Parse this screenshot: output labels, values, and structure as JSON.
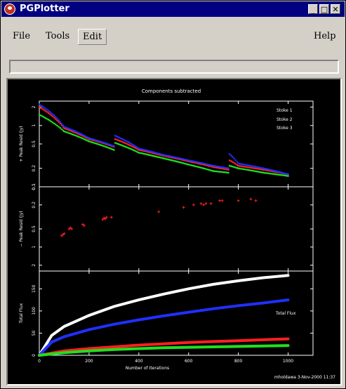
{
  "window": {
    "title": "PGPlotter",
    "controls": {
      "minimize": "_",
      "maximize": "□",
      "close": "✕"
    }
  },
  "menu": {
    "file": "File",
    "tools": "Tools",
    "edit": "Edit",
    "help": "Help"
  },
  "plot": {
    "title": "Components subtracted",
    "footer": "mholdawa   3-Nov-2000 11:37",
    "xlabel": "Number of Iterations",
    "xticks": [
      "0",
      "200",
      "400",
      "600",
      "800",
      "1000"
    ],
    "panels": [
      {
        "ylabel": "+ Peak Resid (Jy)",
        "yticks": [
          "2",
          "1",
          "0.5",
          "0.2",
          "0.1"
        ]
      },
      {
        "ylabel": "− Peak Resid (Jy)",
        "yticks": [
          "0.1",
          "0.2",
          "0.5",
          "1",
          "2"
        ]
      },
      {
        "ylabel": "Total Flux",
        "yticks": [
          "0",
          "50",
          "100",
          "150"
        ],
        "annotation": "Total Flux"
      }
    ]
  },
  "chart_data": {
    "type": "scatter",
    "xlim": [
      0,
      1100
    ],
    "legend": [
      "Stoke 1",
      "Stoke 2",
      "Stoke 3"
    ],
    "legend_position": "top-right",
    "colors": {
      "stoke1": "#ff2020",
      "stoke2": "#20e020",
      "stoke3": "#2030ff",
      "total": "#ffffff"
    },
    "pos_resid": {
      "ylim": [
        0.1,
        2.5
      ],
      "series": [
        {
          "name": "Stoke 1",
          "x": [
            0,
            100,
            200,
            300,
            305,
            400,
            500,
            600,
            700,
            760,
            765,
            800,
            900,
            1000
          ],
          "y": [
            2.0,
            0.9,
            0.6,
            0.45,
            0.6,
            0.4,
            0.32,
            0.26,
            0.21,
            0.19,
            0.27,
            0.22,
            0.19,
            0.16
          ]
        },
        {
          "name": "Stoke 2",
          "x": [
            0,
            100,
            200,
            300,
            305,
            400,
            500,
            600,
            700,
            760,
            765,
            800,
            900,
            1000
          ],
          "y": [
            1.5,
            0.8,
            0.55,
            0.4,
            0.52,
            0.36,
            0.29,
            0.23,
            0.18,
            0.17,
            0.22,
            0.2,
            0.17,
            0.15
          ]
        },
        {
          "name": "Stoke 3",
          "x": [
            0,
            100,
            200,
            300,
            305,
            400,
            500,
            600,
            700,
            760,
            765,
            800,
            900,
            1000
          ],
          "y": [
            2.2,
            0.95,
            0.62,
            0.46,
            0.68,
            0.42,
            0.33,
            0.27,
            0.22,
            0.2,
            0.34,
            0.24,
            0.2,
            0.16
          ]
        }
      ]
    },
    "neg_resid": {
      "ylim": [
        0.1,
        2.5
      ],
      "series": [
        {
          "name": "Stoke 1",
          "x": [
            90,
            95,
            100,
            120,
            125,
            130,
            175,
            180,
            255,
            260,
            265,
            270,
            290,
            480,
            580,
            620,
            650,
            660,
            670,
            690,
            725,
            735,
            800,
            850,
            870
          ],
          "y": [
            0.65,
            0.62,
            0.6,
            0.5,
            0.48,
            0.5,
            0.42,
            0.44,
            0.35,
            0.33,
            0.34,
            0.32,
            0.32,
            0.26,
            0.22,
            0.2,
            0.19,
            0.2,
            0.19,
            0.19,
            0.17,
            0.17,
            0.17,
            0.16,
            0.17
          ]
        }
      ]
    },
    "total_flux": {
      "ylim": [
        0,
        190
      ],
      "series": [
        {
          "name": "total",
          "x": [
            0,
            50,
            100,
            200,
            300,
            400,
            500,
            600,
            700,
            800,
            900,
            1000
          ],
          "y": [
            0,
            45,
            65,
            90,
            110,
            125,
            138,
            150,
            160,
            168,
            175,
            180
          ]
        },
        {
          "name": "Stoke 3",
          "x": [
            0,
            50,
            100,
            200,
            300,
            400,
            500,
            600,
            700,
            800,
            900,
            1000
          ],
          "y": [
            0,
            30,
            42,
            58,
            70,
            80,
            89,
            97,
            105,
            112,
            118,
            125
          ]
        },
        {
          "name": "Stoke 1",
          "x": [
            0,
            100,
            200,
            300,
            400,
            500,
            600,
            700,
            800,
            900,
            1000
          ],
          "y": [
            0,
            10,
            15,
            19,
            23,
            26,
            29,
            31,
            33,
            35,
            37
          ]
        },
        {
          "name": "Stoke 2",
          "x": [
            0,
            100,
            200,
            300,
            400,
            500,
            600,
            700,
            800,
            900,
            1000
          ],
          "y": [
            0,
            6,
            10,
            13,
            15,
            17,
            18,
            19,
            20,
            21,
            22
          ]
        }
      ]
    }
  }
}
